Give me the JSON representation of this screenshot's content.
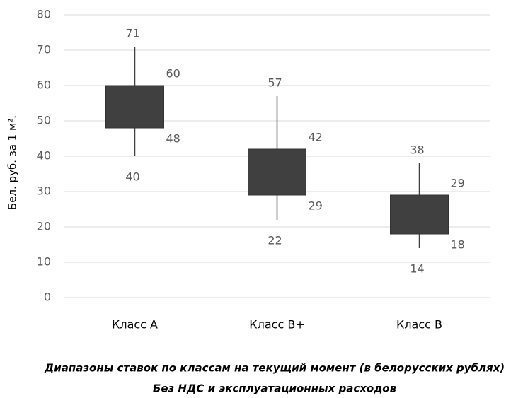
{
  "chart_data": {
    "type": "candlestick",
    "y_label": "Бел. руб. за 1 м².",
    "caption": [
      "Диапазоны ставок по классам на текущий момент (в белорусских рублях)",
      "Без НДС и эксплуатационных расходов"
    ],
    "categories": [
      "Класс А",
      "Класс В+",
      "Класс В"
    ],
    "low": [
      40,
      22,
      14
    ],
    "box_low": [
      48,
      29,
      18
    ],
    "box_high": [
      60,
      42,
      29
    ],
    "high": [
      71,
      57,
      38
    ],
    "color": "#404040",
    "ylim": [
      0,
      80
    ],
    "yticks": [
      0,
      10,
      20,
      30,
      40,
      50,
      60,
      70,
      80
    ],
    "grid": true
  }
}
